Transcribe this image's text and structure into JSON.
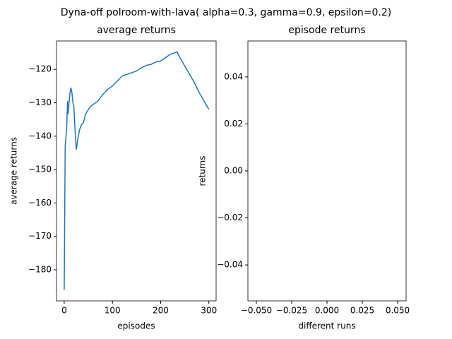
{
  "title": "Dyna-off polroom-with-lava( alpha=0.3, gamma=0.9, epsilon=0.2)",
  "chart_data": [
    {
      "type": "line",
      "title": "average returns",
      "x_label": "episodes",
      "y_label": "average returns",
      "x": [
        0,
        2,
        5,
        7,
        8,
        10,
        12,
        14,
        16,
        18,
        20,
        22,
        25,
        28,
        32,
        36,
        40,
        44,
        48,
        55,
        60,
        70,
        80,
        90,
        100,
        110,
        120,
        130,
        140,
        150,
        160,
        170,
        180,
        190,
        200,
        210,
        220,
        230,
        234,
        240,
        250,
        260,
        270,
        280,
        290,
        300
      ],
      "series": [
        {
          "color": "#1f77b4",
          "values": [
            -186,
            -143,
            -138,
            -129.5,
            -133.5,
            -130,
            -127,
            -125.5,
            -127,
            -130,
            -131,
            -137,
            -144,
            -141,
            -138,
            -136.5,
            -136,
            -133.5,
            -132.5,
            -131,
            -130.5,
            -129.5,
            -127.5,
            -126,
            -125,
            -123.5,
            -122,
            -121.5,
            -121,
            -120.5,
            -119.5,
            -118.8,
            -118.5,
            -117.8,
            -117.5,
            -116.5,
            -115.5,
            -115,
            -114.8,
            -116.5,
            -119,
            -121.5,
            -124,
            -127,
            -129.5,
            -132
          ]
        }
      ],
      "xlim": [
        -16,
        315
      ],
      "ylim": [
        -189.3,
        -111.5
      ],
      "xticks": [
        0,
        100,
        200,
        300
      ],
      "yticks": [
        {
          "value": -180,
          "label": "−180"
        },
        {
          "value": -170,
          "label": "−170"
        },
        {
          "value": -160,
          "label": "−160"
        },
        {
          "value": -150,
          "label": "−150"
        },
        {
          "value": -140,
          "label": "−140"
        },
        {
          "value": -130,
          "label": "−130"
        },
        {
          "value": -120,
          "label": "−120"
        }
      ]
    },
    {
      "type": "line",
      "title": "episode returns",
      "x_label": "different runs",
      "y_label": "returns",
      "x": [],
      "series": [
        {
          "color": "#1f77b4",
          "values": []
        }
      ],
      "xlim": [
        -0.056,
        0.056
      ],
      "ylim": [
        -0.0553,
        0.0553
      ],
      "xticks": [
        {
          "value": -0.05,
          "label": "−0.050"
        },
        {
          "value": -0.025,
          "label": "−0.025"
        },
        {
          "value": 0,
          "label": "0.000"
        },
        0.025,
        {
          "value": 0.05,
          "label": "0.050"
        }
      ],
      "yticks": [
        {
          "value": -0.04,
          "label": "−0.04"
        },
        {
          "value": -0.02,
          "label": "−0.02"
        },
        {
          "value": 0,
          "label": "0.00"
        },
        0.02,
        0.04
      ]
    }
  ]
}
